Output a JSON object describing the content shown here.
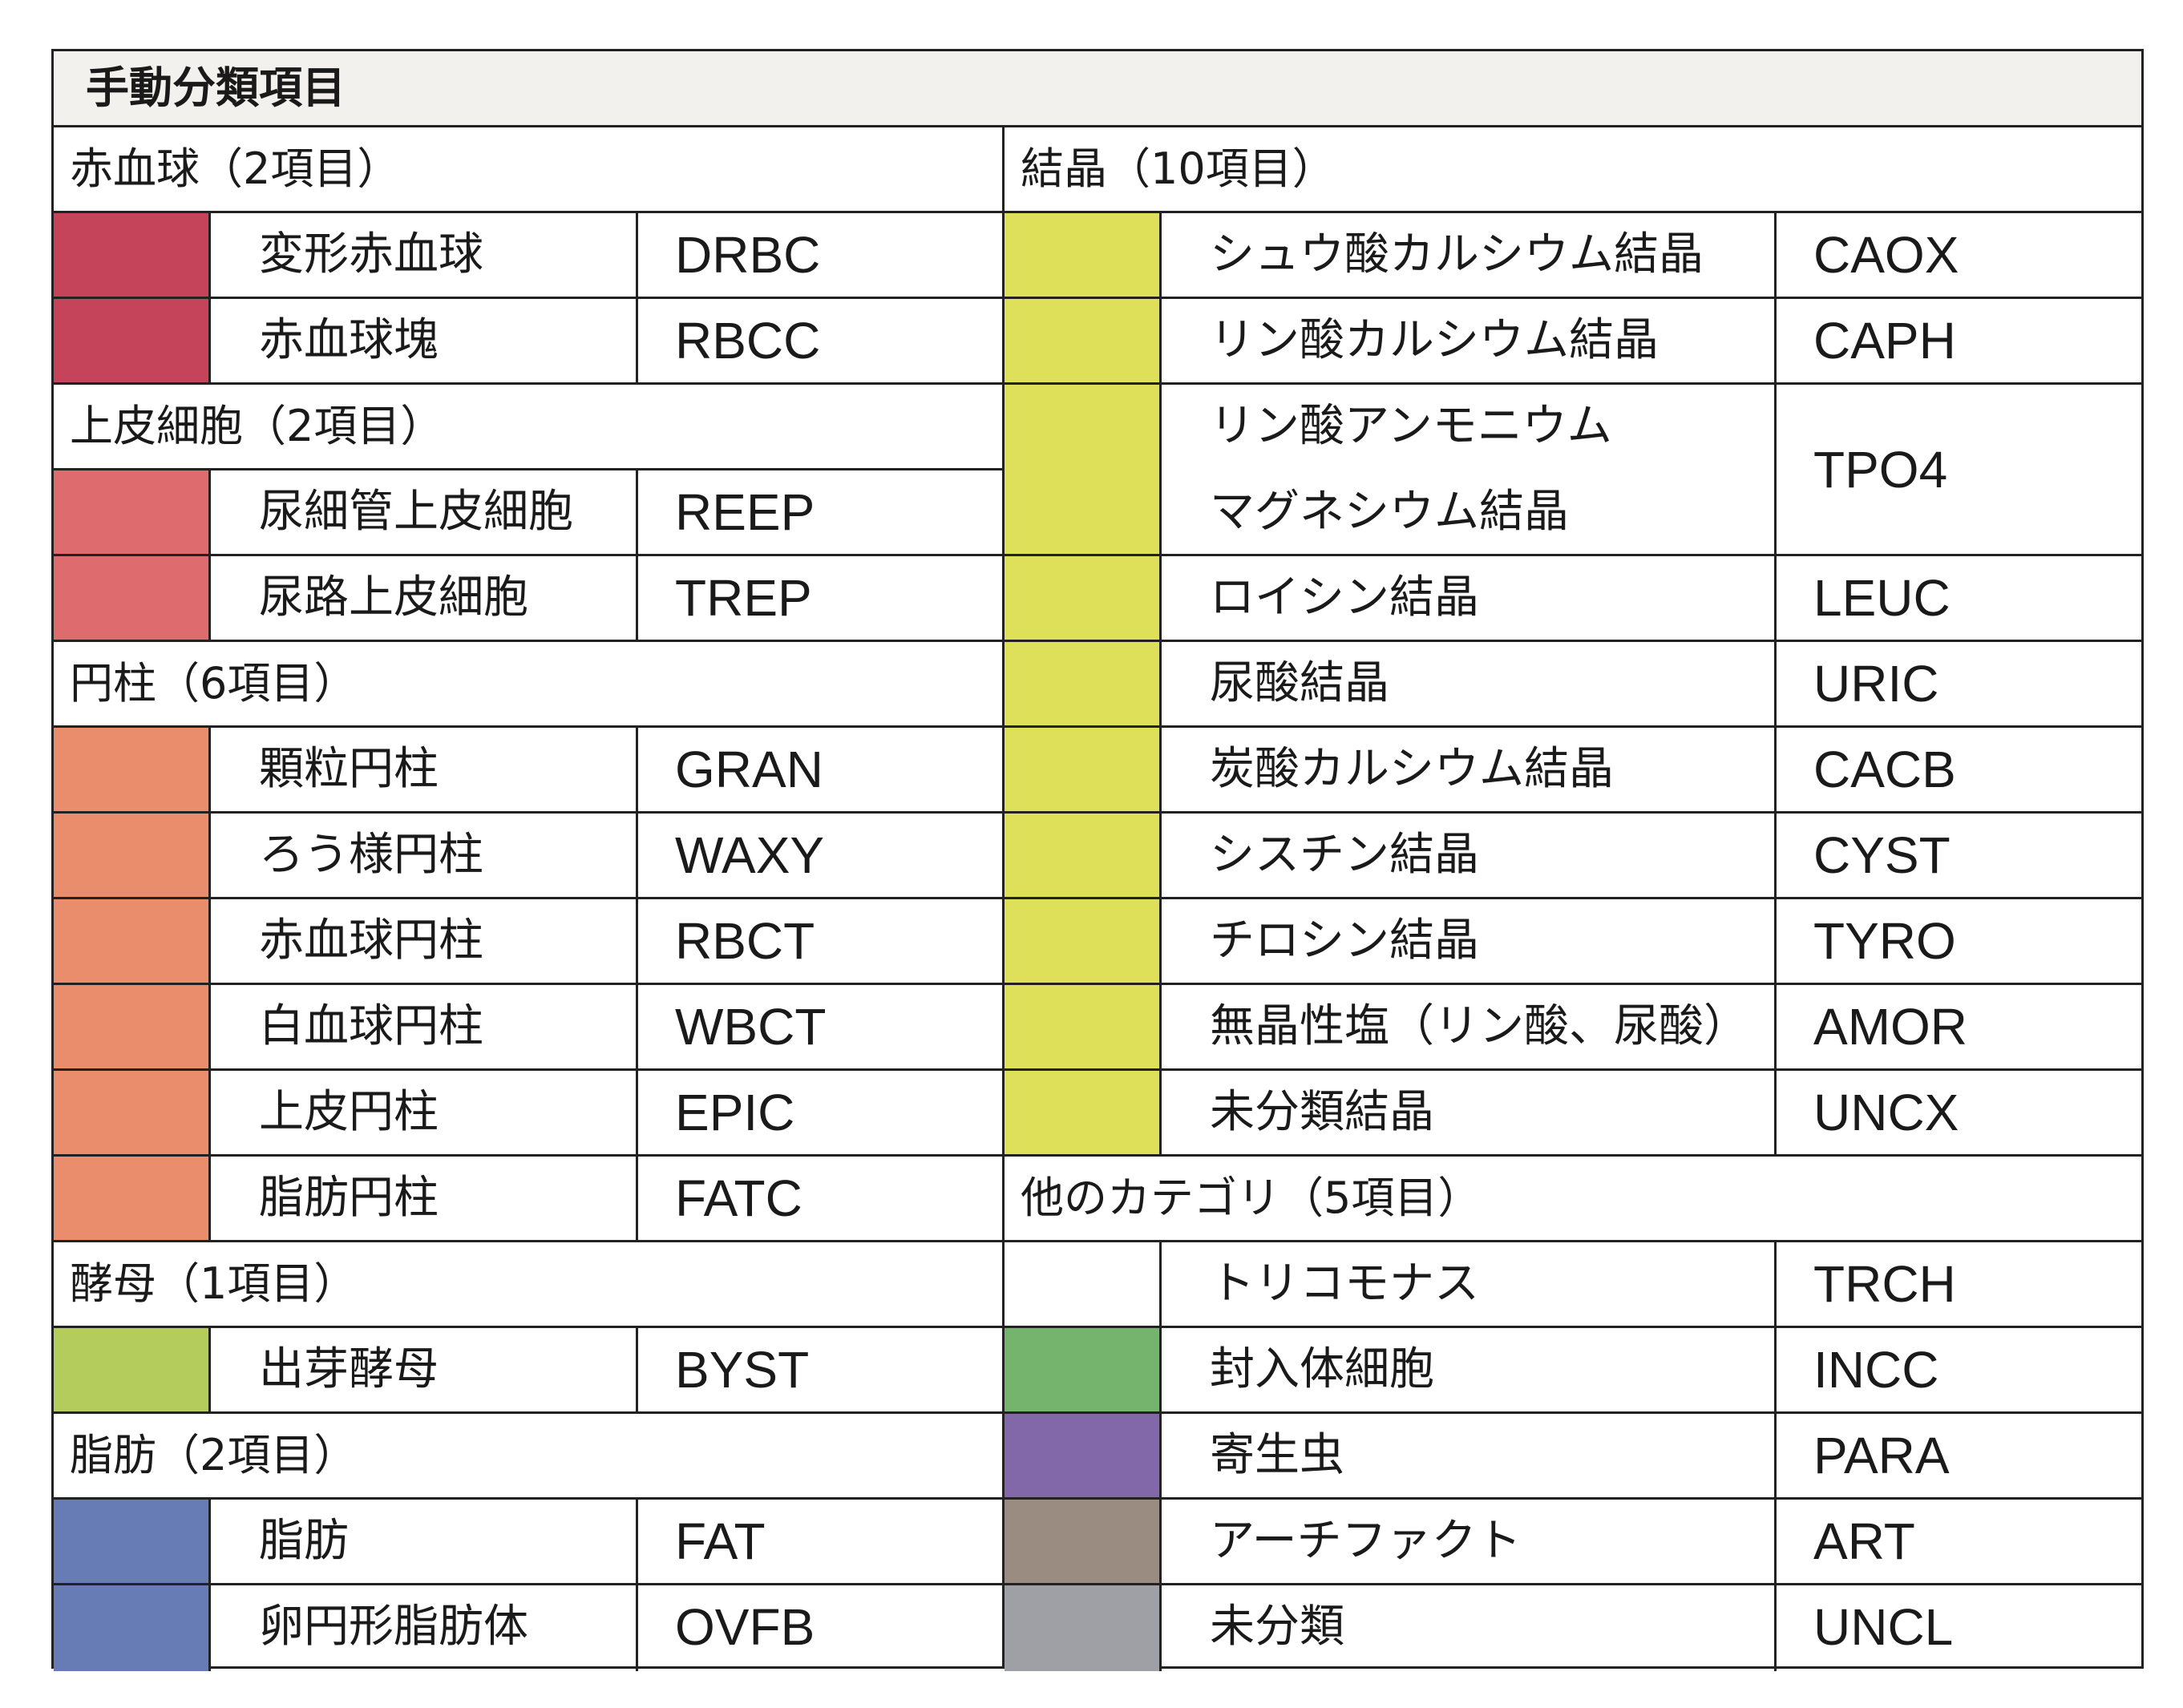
{
  "title": "手動分類項目",
  "colors": {
    "rbc": "#c5445a",
    "epithelial": "#de6b6e",
    "cast": "#e98d6d",
    "yeast": "#b3cc5c",
    "fat": "#677bb5",
    "crystal": "#dfe05a",
    "trich": "#ffffff",
    "incc": "#74b46d",
    "para": "#8267a9",
    "art": "#9b8c82",
    "uncl": "#9ea0a6"
  },
  "left": {
    "rbc": {
      "label": "赤血球（2項目）",
      "items": [
        {
          "name": "変形赤血球",
          "code": "DRBC"
        },
        {
          "name": "赤血球塊",
          "code": "RBCC"
        }
      ]
    },
    "epithelial": {
      "label": "上皮細胞（2項目）",
      "items": [
        {
          "name": "尿細管上皮細胞",
          "code": "REEP"
        },
        {
          "name": "尿路上皮細胞",
          "code": "TREP"
        }
      ]
    },
    "cast": {
      "label": "円柱（6項目）",
      "items": [
        {
          "name": "顆粒円柱",
          "code": "GRAN"
        },
        {
          "name": "ろう様円柱",
          "code": "WAXY"
        },
        {
          "name": "赤血球円柱",
          "code": "RBCT"
        },
        {
          "name": "白血球円柱",
          "code": "WBCT"
        },
        {
          "name": "上皮円柱",
          "code": "EPIC"
        },
        {
          "name": "脂肪円柱",
          "code": "FATC"
        }
      ]
    },
    "yeast": {
      "label": "酵母（1項目）",
      "items": [
        {
          "name": "出芽酵母",
          "code": "BYST"
        }
      ]
    },
    "fat": {
      "label": "脂肪（2項目）",
      "items": [
        {
          "name": "脂肪",
          "code": "FAT"
        },
        {
          "name": "卵円形脂肪体",
          "code": "OVFB"
        }
      ]
    }
  },
  "right": {
    "crystal": {
      "label": "結晶（10項目）",
      "items": [
        {
          "name": "シュウ酸カルシウム結晶",
          "code": "CAOX"
        },
        {
          "name": "リン酸カルシウム結晶",
          "code": "CAPH"
        },
        {
          "name": "リン酸アンモニウム",
          "name2": "マグネシウム結晶",
          "code": "TPO4"
        },
        {
          "name": "ロイシン結晶",
          "code": "LEUC"
        },
        {
          "name": "尿酸結晶",
          "code": "URIC"
        },
        {
          "name": "炭酸カルシウム結晶",
          "code": "CACB"
        },
        {
          "name": "シスチン結晶",
          "code": "CYST"
        },
        {
          "name": "チロシン結晶",
          "code": "TYRO"
        },
        {
          "name": "無晶性塩（リン酸、尿酸）",
          "code": "AMOR"
        },
        {
          "name": "未分類結晶",
          "code": "UNCX"
        }
      ]
    },
    "other": {
      "label": "他のカテゴリ（5項目）",
      "items": [
        {
          "name": "トリコモナス",
          "code": "TRCH"
        },
        {
          "name": "封入体細胞",
          "code": "INCC"
        },
        {
          "name": "寄生虫",
          "code": "PARA"
        },
        {
          "name": "アーチファクト",
          "code": "ART"
        },
        {
          "name": "未分類",
          "code": "UNCL"
        }
      ]
    }
  }
}
